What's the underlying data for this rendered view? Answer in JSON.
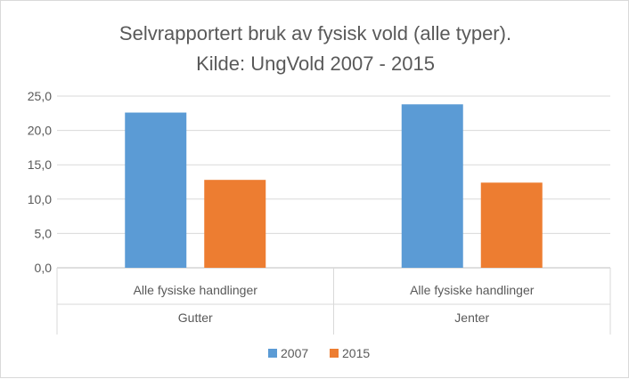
{
  "chart_data": {
    "type": "bar",
    "title": "Selvrapportert bruk av fysisk vold (alle typer).",
    "subtitle": "Kilde: UngVold 2007 - 2015",
    "categories": [
      {
        "label": "Alle fysiske handlinger",
        "group": "Gutter"
      },
      {
        "label": "Alle fysiske handlinger",
        "group": "Jenter"
      }
    ],
    "series": [
      {
        "name": "2007",
        "color": "#5b9bd5",
        "values": [
          22.6,
          23.8
        ]
      },
      {
        "name": "2015",
        "color": "#ed7d31",
        "values": [
          12.8,
          12.4
        ]
      }
    ],
    "ylim": [
      0,
      25
    ],
    "yticks": [
      "0,0",
      "5,0",
      "10,0",
      "15,0",
      "20,0",
      "25,0"
    ],
    "grid": true,
    "legend": "bottom"
  }
}
